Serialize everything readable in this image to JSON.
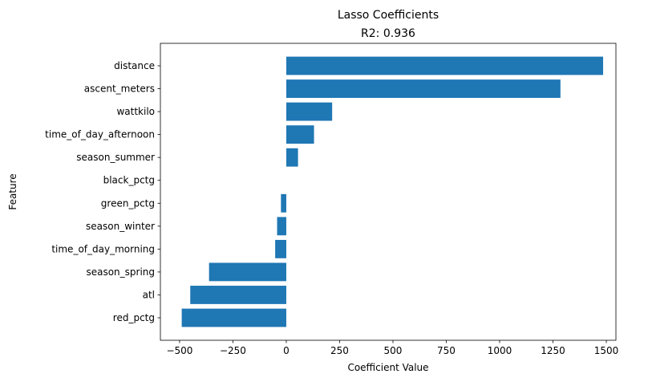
{
  "chart_data": {
    "type": "bar",
    "orientation": "horizontal",
    "title": "Lasso Coefficients",
    "subtitle": "R2: 0.936",
    "xlabel": "Coefficient Value",
    "ylabel": "Feature",
    "xlim": [
      -590,
      1545
    ],
    "x_ticks": [
      -500,
      -250,
      0,
      250,
      500,
      750,
      1000,
      1250,
      1500
    ],
    "x_tick_labels": [
      "−500",
      "−250",
      "0",
      "250",
      "500",
      "750",
      "1000",
      "1250",
      "1500"
    ],
    "categories": [
      "distance",
      "ascent_meters",
      "wattkilo",
      "time_of_day_afternoon",
      "season_summer",
      "black_pctg",
      "green_pctg",
      "season_winter",
      "time_of_day_morning",
      "season_spring",
      "atl",
      "red_pctg"
    ],
    "values": [
      1485,
      1285,
      215,
      130,
      55,
      0,
      -25,
      -43,
      -52,
      -362,
      -450,
      -490
    ],
    "bar_color": "#1f77b4",
    "grid": false,
    "legend": "none"
  }
}
